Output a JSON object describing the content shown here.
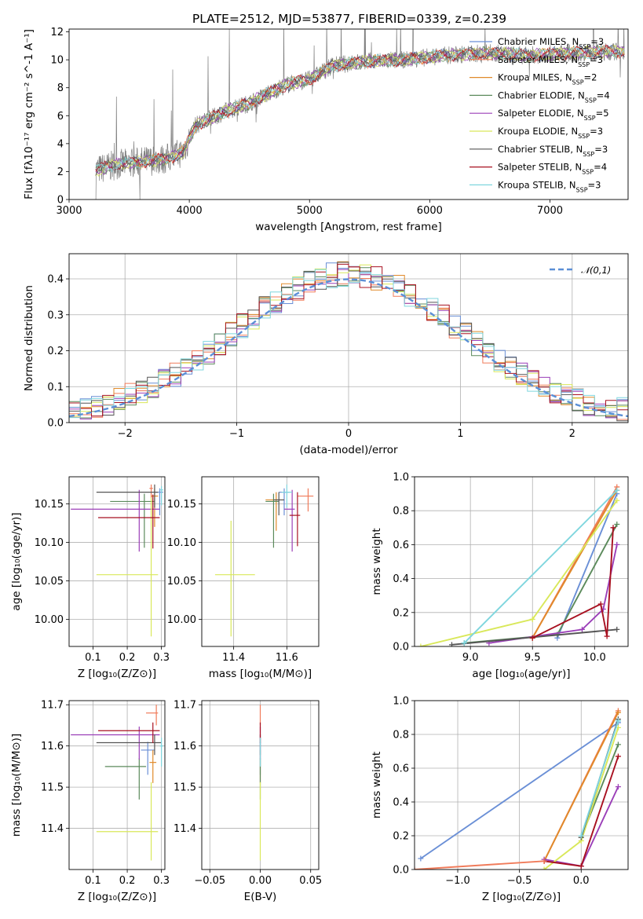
{
  "title": "PLATE=2512, MJD=53877, FIBERID=0339, z=0.239",
  "models": [
    {
      "name": "Chabrier MILES",
      "nssp": "3",
      "color": "#6a8fd6"
    },
    {
      "name": "Salpeter MILES",
      "nssp": "3",
      "color": "#f07b5a"
    },
    {
      "name": "Kroupa MILES",
      "nssp": "2",
      "color": "#e08a2a"
    },
    {
      "name": "Chabrier ELODIE",
      "nssp": "4",
      "color": "#5b8a5b"
    },
    {
      "name": "Salpeter ELODIE",
      "nssp": "5",
      "color": "#9b3fb8"
    },
    {
      "name": "Kroupa ELODIE",
      "nssp": "3",
      "color": "#d9e85a"
    },
    {
      "name": "Chabrier STELIB",
      "nssp": "3",
      "color": "#555555"
    },
    {
      "name": "Salpeter STELIB",
      "nssp": "4",
      "color": "#a81020"
    },
    {
      "name": "Kroupa STELIB",
      "nssp": "3",
      "color": "#7fd6de"
    }
  ],
  "chart_data": [
    {
      "id": "spectrum",
      "type": "line",
      "xlabel": "wavelength [Angstrom, rest frame]",
      "ylabel": "Flux [f_λ10^-17 erg cm^-2 s^-1 A^-1]",
      "xlim": [
        3000,
        7650
      ],
      "ylim": [
        0,
        12.2
      ],
      "xticks": [
        3000,
        4000,
        5000,
        6000,
        7000
      ],
      "yticks": [
        0,
        2,
        4,
        6,
        8,
        10,
        12
      ],
      "grid": false,
      "legend": "upper-right",
      "data_color": "#808080",
      "continuum": [
        [
          3220,
          2.1
        ],
        [
          3400,
          2.5
        ],
        [
          3600,
          2.7
        ],
        [
          3800,
          2.9
        ],
        [
          3950,
          3.4
        ],
        [
          4050,
          5.3
        ],
        [
          4300,
          6.3
        ],
        [
          4500,
          6.9
        ],
        [
          4800,
          8.2
        ],
        [
          5000,
          8.6
        ],
        [
          5200,
          9.6
        ],
        [
          5500,
          9.9
        ],
        [
          5800,
          10.0
        ],
        [
          6100,
          10.3
        ],
        [
          6500,
          10.5
        ],
        [
          6800,
          10.3
        ],
        [
          7200,
          10.5
        ],
        [
          7600,
          10.6
        ]
      ]
    },
    {
      "id": "residuals",
      "type": "histogram",
      "xlabel": "(data-model)/error",
      "ylabel": "Normed distribution",
      "xlim": [
        -2.5,
        2.5
      ],
      "ylim": [
        0,
        0.47
      ],
      "xticks": [
        -2,
        -1,
        0,
        1,
        2
      ],
      "yticks": [
        0.0,
        0.1,
        0.2,
        0.3,
        0.4
      ],
      "grid": true,
      "legend": "upper-right",
      "reference_curve": {
        "label": "𝒩(0,1)",
        "mean": 0,
        "sigma": 1,
        "color": "#5b8fd6"
      },
      "bin_width": 0.1
    },
    {
      "id": "age-vs-Z",
      "type": "errorbar",
      "xlabel": "Z [log10(Z/Z⊙)]",
      "ylabel": "age [log10(age/yr)]",
      "xlim": [
        0.03,
        0.31
      ],
      "ylim": [
        9.965,
        10.185
      ],
      "xticks": [
        0.1,
        0.2,
        0.3
      ],
      "yticks": [
        10.0,
        10.05,
        10.1,
        10.15
      ],
      "grid": true,
      "points": [
        {
          "model": 0,
          "x": 0.295,
          "y": 10.165,
          "xerr": [
            0.01,
            0.01
          ],
          "yerr": [
            0.03,
            0.005
          ]
        },
        {
          "model": 1,
          "x": 0.27,
          "y": 10.17,
          "xerr": [
            0.005,
            0.005
          ],
          "yerr": [
            0.04,
            0.005
          ]
        },
        {
          "model": 2,
          "x": 0.28,
          "y": 10.16,
          "xerr": [
            0.01,
            0.01
          ],
          "yerr": [
            0.04,
            0.01
          ]
        },
        {
          "model": 3,
          "x": 0.25,
          "y": 10.153,
          "xerr": [
            0.1,
            0.03
          ],
          "yerr": [
            0.06,
            0.01
          ]
        },
        {
          "model": 4,
          "x": 0.235,
          "y": 10.143,
          "xerr": [
            0.2,
            0.06
          ],
          "yerr": [
            0.055,
            0.025
          ]
        },
        {
          "model": 5,
          "x": 0.27,
          "y": 10.058,
          "xerr": [
            0.16,
            0.02
          ],
          "yerr": [
            0.08,
            0.1
          ]
        },
        {
          "model": 6,
          "x": 0.28,
          "y": 10.165,
          "xerr": [
            0.17,
            0.01
          ],
          "yerr": [
            0.02,
            0.01
          ]
        },
        {
          "model": 7,
          "x": 0.275,
          "y": 10.132,
          "xerr": [
            0.16,
            0.02
          ],
          "yerr": [
            0.04,
            0.03
          ]
        },
        {
          "model": 8,
          "x": 0.3,
          "y": 10.168,
          "xerr": [
            0.005,
            0.005
          ],
          "yerr": [
            0.02,
            0.005
          ]
        }
      ]
    },
    {
      "id": "age-vs-mass",
      "type": "errorbar",
      "xlabel": "mass [log10(M/M⊙)]",
      "ylabel": "",
      "xlim": [
        11.28,
        11.72
      ],
      "ylim": [
        9.965,
        10.185
      ],
      "xticks": [
        11.4,
        11.6
      ],
      "yticks": [
        10.0,
        10.05,
        10.1,
        10.15
      ],
      "grid": true,
      "points": [
        {
          "model": 0,
          "x": 11.59,
          "y": 10.165,
          "xerr": [
            0.02,
            0.02
          ],
          "yerr": [
            0.03,
            0.005
          ]
        },
        {
          "model": 1,
          "x": 11.68,
          "y": 10.16,
          "xerr": [
            0.04,
            0.02
          ],
          "yerr": [
            0.02,
            0.01
          ]
        },
        {
          "model": 2,
          "x": 11.56,
          "y": 10.155,
          "xerr": [
            0.04,
            0.03
          ],
          "yerr": [
            0.04,
            0.01
          ]
        },
        {
          "model": 3,
          "x": 11.55,
          "y": 10.153,
          "xerr": [
            0.03,
            0.02
          ],
          "yerr": [
            0.06,
            0.01
          ]
        },
        {
          "model": 4,
          "x": 11.62,
          "y": 10.143,
          "xerr": [
            0.03,
            0.01
          ],
          "yerr": [
            0.055,
            0.025
          ]
        },
        {
          "model": 5,
          "x": 11.39,
          "y": 10.058,
          "xerr": [
            0.06,
            0.09
          ],
          "yerr": [
            0.08,
            0.07
          ]
        },
        {
          "model": 6,
          "x": 11.57,
          "y": 10.155,
          "xerr": [
            0.02,
            0.02
          ],
          "yerr": [
            0.02,
            0.01
          ]
        },
        {
          "model": 7,
          "x": 11.64,
          "y": 10.135,
          "xerr": [
            0.03,
            0.01
          ],
          "yerr": [
            0.04,
            0.03
          ]
        },
        {
          "model": 8,
          "x": 11.6,
          "y": 10.165,
          "xerr": [
            0.02,
            0.02
          ],
          "yerr": [
            0.02,
            0.01
          ]
        }
      ]
    },
    {
      "id": "mass-weight-vs-age",
      "type": "line",
      "xlabel": "age [log10(age/yr)]",
      "ylabel": "mass weight",
      "xlim": [
        8.55,
        10.27
      ],
      "ylim": [
        0,
        1.0
      ],
      "xticks": [
        9.0,
        9.5,
        10.0
      ],
      "yticks": [
        0.0,
        0.2,
        0.4,
        0.6,
        0.8,
        1.0
      ],
      "grid": true,
      "series": [
        {
          "model": 0,
          "x": [
            9.7,
            10.18
          ],
          "y": [
            0.05,
            0.9
          ]
        },
        {
          "model": 1,
          "x": [
            9.5,
            10.18
          ],
          "y": [
            0.05,
            0.94
          ]
        },
        {
          "model": 2,
          "x": [
            9.5,
            10.18
          ],
          "y": [
            0.05,
            0.92
          ]
        },
        {
          "model": 3,
          "x": [
            8.95,
            9.7,
            10.18
          ],
          "y": [
            0.02,
            0.07,
            0.72
          ]
        },
        {
          "model": 4,
          "x": [
            9.15,
            9.9,
            10.07,
            10.18
          ],
          "y": [
            0.02,
            0.1,
            0.22,
            0.6
          ]
        },
        {
          "model": 5,
          "x": [
            8.6,
            9.5,
            10.18
          ],
          "y": [
            0.0,
            0.16,
            0.86
          ]
        },
        {
          "model": 6,
          "x": [
            8.85,
            10.18
          ],
          "y": [
            0.01,
            0.1
          ]
        },
        {
          "model": 7,
          "x": [
            9.5,
            10.05,
            10.1,
            10.15
          ],
          "y": [
            0.05,
            0.25,
            0.06,
            0.7
          ]
        },
        {
          "model": 8,
          "x": [
            8.95,
            10.18
          ],
          "y": [
            0.02,
            0.92
          ]
        }
      ]
    },
    {
      "id": "mass-vs-Z",
      "type": "errorbar",
      "xlabel": "Z [log10(Z/Z⊙)]",
      "ylabel": "mass [log10(M/M⊙)]",
      "xlim": [
        0.03,
        0.31
      ],
      "ylim": [
        11.3,
        11.71
      ],
      "xticks": [
        0.1,
        0.2,
        0.3
      ],
      "yticks": [
        11.4,
        11.5,
        11.6,
        11.7
      ],
      "grid": true,
      "points": [
        {
          "model": 0,
          "x": 0.26,
          "y": 11.59,
          "xerr": [
            0.02,
            0.02
          ],
          "yerr": [
            0.06,
            0.02
          ]
        },
        {
          "model": 1,
          "x": 0.285,
          "y": 11.68,
          "xerr": [
            0.03,
            0.005
          ],
          "yerr": [
            0.03,
            0.02
          ]
        },
        {
          "model": 2,
          "x": 0.275,
          "y": 11.56,
          "xerr": [
            0.01,
            0.01
          ],
          "yerr": [
            0.05,
            0.03
          ]
        },
        {
          "model": 3,
          "x": 0.235,
          "y": 11.55,
          "xerr": [
            0.1,
            0.02
          ],
          "yerr": [
            0.08,
            0.02
          ]
        },
        {
          "model": 4,
          "x": 0.235,
          "y": 11.627,
          "xerr": [
            0.2,
            0.06
          ],
          "yerr": [
            0.06,
            0.02
          ]
        },
        {
          "model": 5,
          "x": 0.27,
          "y": 11.392,
          "xerr": [
            0.16,
            0.02
          ],
          "yerr": [
            0.07,
            0.12
          ]
        },
        {
          "model": 6,
          "x": 0.28,
          "y": 11.608,
          "xerr": [
            0.17,
            0.02
          ],
          "yerr": [
            0.03,
            0.02
          ]
        },
        {
          "model": 7,
          "x": 0.275,
          "y": 11.637,
          "xerr": [
            0.16,
            0.02
          ],
          "yerr": [
            0.03,
            0.02
          ]
        },
        {
          "model": 8,
          "x": 0.3,
          "y": 11.6,
          "xerr": [
            0.005,
            0.005
          ],
          "yerr": [
            0.05,
            0.02
          ]
        }
      ]
    },
    {
      "id": "mass-vs-EBV",
      "type": "errorbar",
      "xlabel": "E(B-V)",
      "ylabel": "",
      "xlim": [
        -0.058,
        0.058
      ],
      "ylim": [
        11.3,
        11.71
      ],
      "xticks": [
        -0.05,
        0.0,
        0.05
      ],
      "yticks": [
        11.4,
        11.5,
        11.6,
        11.7
      ],
      "grid": true,
      "points": [
        {
          "model": 0,
          "x": 0,
          "y": 11.59,
          "xerr": [
            0,
            0
          ],
          "yerr": [
            0.06,
            0.02
          ]
        },
        {
          "model": 1,
          "x": 0,
          "y": 11.68,
          "xerr": [
            0,
            0
          ],
          "yerr": [
            0.03,
            0.02
          ]
        },
        {
          "model": 2,
          "x": 0,
          "y": 11.56,
          "xerr": [
            0,
            0
          ],
          "yerr": [
            0.05,
            0.03
          ]
        },
        {
          "model": 3,
          "x": 0,
          "y": 11.55,
          "xerr": [
            0,
            0
          ],
          "yerr": [
            0.08,
            0.02
          ]
        },
        {
          "model": 4,
          "x": 0,
          "y": 11.627,
          "xerr": [
            0,
            0
          ],
          "yerr": [
            0.06,
            0.02
          ]
        },
        {
          "model": 5,
          "x": 0,
          "y": 11.392,
          "xerr": [
            0,
            0
          ],
          "yerr": [
            0.07,
            0.12
          ]
        },
        {
          "model": 6,
          "x": 0,
          "y": 11.608,
          "xerr": [
            0,
            0
          ],
          "yerr": [
            0.03,
            0.02
          ]
        },
        {
          "model": 7,
          "x": 0,
          "y": 11.637,
          "xerr": [
            0,
            0
          ],
          "yerr": [
            0.03,
            0.02
          ]
        },
        {
          "model": 8,
          "x": 0,
          "y": 11.6,
          "xerr": [
            0,
            0
          ],
          "yerr": [
            0.05,
            0.02
          ]
        }
      ]
    },
    {
      "id": "mass-weight-vs-Z",
      "type": "line",
      "xlabel": "Z [log10(Z/Z⊙)]",
      "ylabel": "mass weight",
      "xlim": [
        -1.35,
        0.38
      ],
      "ylim": [
        0,
        1.0
      ],
      "xticks": [
        -1.0,
        -0.5,
        0.0
      ],
      "yticks": [
        0.0,
        0.2,
        0.4,
        0.6,
        0.8,
        1.0
      ],
      "grid": true,
      "series": [
        {
          "model": 0,
          "x": [
            -1.3,
            0.3
          ],
          "y": [
            0.065,
            0.87
          ]
        },
        {
          "model": 1,
          "x": [
            -0.3,
            0.3
          ],
          "y": [
            0.05,
            0.94
          ]
        },
        {
          "model": 2,
          "x": [
            -0.3,
            0.3
          ],
          "y": [
            0.05,
            0.93
          ]
        },
        {
          "model": 3,
          "x": [
            0.0,
            0.3
          ],
          "y": [
            0.19,
            0.74
          ]
        },
        {
          "model": 4,
          "x": [
            -0.3,
            0.0,
            0.3
          ],
          "y": [
            0.06,
            0.02,
            0.49
          ]
        },
        {
          "model": 5,
          "x": [
            -0.3,
            0.0,
            0.3
          ],
          "y": [
            0.0,
            0.17,
            0.84
          ]
        },
        {
          "model": 6,
          "x": [
            0.0,
            0.3
          ],
          "y": [
            0.19,
            0.89
          ]
        },
        {
          "model": 7,
          "x": [
            -0.3,
            0.0,
            0.3
          ],
          "y": [
            0.05,
            0.02,
            0.67
          ]
        },
        {
          "model": 8,
          "x": [
            0.0,
            0.3
          ],
          "y": [
            0.2,
            0.88
          ]
        },
        {
          "model": 1,
          "x": [
            -1.35,
            -0.3
          ],
          "y": [
            0.0,
            0.05
          ]
        }
      ]
    }
  ]
}
